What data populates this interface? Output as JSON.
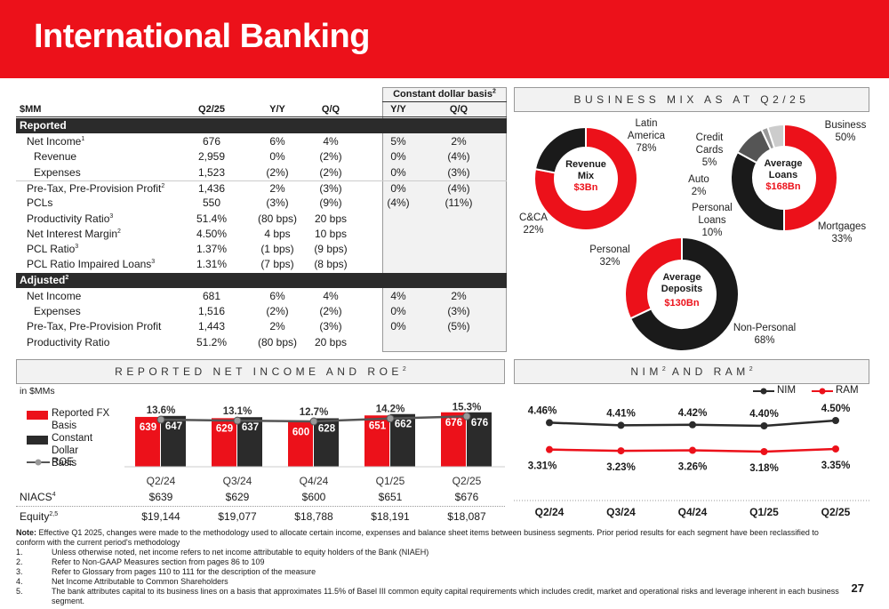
{
  "title": "International Banking",
  "table": {
    "cdb": "Constant dollar basis",
    "cdb_sup": "2",
    "headers": [
      "$MM",
      "Q2/25",
      "Y/Y",
      "Q/Q",
      "Y/Y",
      "Q/Q"
    ],
    "sections": [
      {
        "label": "Reported",
        "sup": ""
      },
      {
        "label": "Adjusted",
        "sup": "2"
      }
    ],
    "reported_rows": [
      {
        "label": "Net Income",
        "sup": "1",
        "indent": false,
        "vals": [
          "676",
          "6%",
          "4%",
          "5%",
          "2%"
        ]
      },
      {
        "label": "Revenue",
        "sup": "",
        "indent": true,
        "vals": [
          "2,959",
          "0%",
          "(2%)",
          "0%",
          "(4%)"
        ]
      },
      {
        "label": "Expenses",
        "sup": "",
        "indent": true,
        "vals": [
          "1,523",
          "(2%)",
          "(2%)",
          "0%",
          "(3%)"
        ]
      },
      {
        "label": "Pre-Tax, Pre-Provision Profit",
        "sup": "2",
        "indent": false,
        "vals": [
          "1,436",
          "2%",
          "(3%)",
          "0%",
          "(4%)"
        ]
      },
      {
        "label": "PCLs",
        "sup": "",
        "indent": false,
        "vals": [
          "550",
          "(3%)",
          "(9%)",
          "(4%)",
          "(11%)"
        ]
      },
      {
        "label": "Productivity Ratio",
        "sup": "3",
        "indent": false,
        "vals": [
          "51.4%",
          "(80 bps)",
          "20 bps",
          "",
          ""
        ]
      },
      {
        "label": "Net Interest Margin",
        "sup": "2",
        "indent": false,
        "vals": [
          "4.50%",
          "4 bps",
          "10 bps",
          "",
          ""
        ]
      },
      {
        "label": "PCL Ratio",
        "sup": "3",
        "indent": false,
        "vals": [
          "1.37%",
          "(1 bps)",
          "(9 bps)",
          "",
          ""
        ]
      },
      {
        "label": "PCL Ratio Impaired Loans",
        "sup": "3",
        "indent": false,
        "vals": [
          "1.31%",
          "(7 bps)",
          "(8 bps)",
          "",
          ""
        ]
      }
    ],
    "adjusted_rows": [
      {
        "label": "Net Income",
        "sup": "",
        "indent": false,
        "vals": [
          "681",
          "6%",
          "4%",
          "4%",
          "2%"
        ]
      },
      {
        "label": "Expenses",
        "sup": "",
        "indent": true,
        "vals": [
          "1,516",
          "(2%)",
          "(2%)",
          "0%",
          "(3%)"
        ]
      },
      {
        "label": "Pre-Tax, Pre-Provision Profit",
        "sup": "",
        "indent": false,
        "vals": [
          "1,443",
          "2%",
          "(3%)",
          "0%",
          "(5%)"
        ]
      },
      {
        "label": "Productivity Ratio",
        "sup": "",
        "indent": false,
        "vals": [
          "51.2%",
          "(80 bps)",
          "20 bps",
          "",
          ""
        ]
      }
    ]
  },
  "business_mix": {
    "title": "BUSINESS MIX AS AT Q2/25",
    "revenue": {
      "center": [
        "Revenue",
        "Mix"
      ],
      "value": "$3Bn",
      "labels": [
        {
          "name": "Latin America",
          "pct": "78%"
        },
        {
          "name": "C&CA",
          "pct": "22%"
        }
      ],
      "slices": [
        78,
        22
      ]
    },
    "loans": {
      "center": [
        "Average",
        "Loans"
      ],
      "value": "$168Bn",
      "labels": [
        {
          "name": "Business",
          "pct": "50%"
        },
        {
          "name": "Mortgages",
          "pct": "33%"
        },
        {
          "name": "Personal Loans",
          "pct": "10%"
        },
        {
          "name": "Auto",
          "pct": "2%"
        },
        {
          "name": "Credit Cards",
          "pct": "5%"
        }
      ],
      "slices": [
        50,
        33,
        10,
        2,
        5
      ]
    },
    "deposits": {
      "center": [
        "Average",
        "Deposits"
      ],
      "value": "$130Bn",
      "labels": [
        {
          "name": "Non-Personal",
          "pct": "68%"
        },
        {
          "name": "Personal",
          "pct": "32%"
        }
      ],
      "slices": [
        68,
        32
      ]
    }
  },
  "net_income_panel": {
    "title": "REPORTED NET INCOME AND ROE",
    "title_sup": "2",
    "unit": "in $MMs",
    "legend": [
      "Reported FX Basis",
      "Constant Dollar Basis",
      "ROE"
    ],
    "niacs_label": "NIACS",
    "niacs_sup": "4",
    "equity_label": "Equity",
    "equity_sup": "2,5",
    "niacs": [
      "$639",
      "$629",
      "$600",
      "$651",
      "$676"
    ],
    "equity": [
      "$19,144",
      "$19,077",
      "$18,788",
      "$18,191",
      "$18,087"
    ]
  },
  "nim_panel": {
    "title": "NIM AND RAM",
    "legend": [
      "NIM",
      "RAM"
    ]
  },
  "colors": {
    "red": "#ec111a",
    "dark": "#2b2b2b",
    "grey": "#888888"
  },
  "chart_data": [
    {
      "type": "bar",
      "categories": [
        "Q2/24",
        "Q3/24",
        "Q4/24",
        "Q1/25",
        "Q2/25"
      ],
      "series": [
        {
          "name": "Reported FX Basis",
          "values": [
            639,
            629,
            600,
            651,
            676
          ]
        },
        {
          "name": "Constant Dollar Basis",
          "values": [
            647,
            637,
            628,
            662,
            676
          ]
        },
        {
          "name": "ROE",
          "values": [
            13.6,
            13.1,
            12.7,
            14.2,
            15.3
          ],
          "labels": [
            "13.6%",
            "13.1%",
            "12.7%",
            "14.2%",
            "15.3%"
          ]
        }
      ]
    },
    {
      "type": "line",
      "categories": [
        "Q2/24",
        "Q3/24",
        "Q4/24",
        "Q1/25",
        "Q2/25"
      ],
      "series": [
        {
          "name": "NIM",
          "values": [
            4.46,
            4.41,
            4.42,
            4.4,
            4.5
          ],
          "labels": [
            "4.46%",
            "4.41%",
            "4.42%",
            "4.40%",
            "4.50%"
          ]
        },
        {
          "name": "RAM",
          "values": [
            3.31,
            3.23,
            3.26,
            3.18,
            3.35
          ],
          "labels": [
            "3.31%",
            "3.23%",
            "3.26%",
            "3.18%",
            "3.35%"
          ]
        }
      ]
    }
  ],
  "notes": {
    "note_label": "Note:",
    "note_text": " Effective Q1 2025, changes were made to the methodology used to allocate certain income, expenses and balance sheet items between business segments. Prior period results for each segment have been reclassified to conform with the current period's methodology",
    "items": [
      {
        "n": "1.",
        "text": "Unless otherwise noted, net income refers to net income attributable to equity holders of the Bank (NIAEH)"
      },
      {
        "n": "2.",
        "text": "Refer to Non-GAAP Measures section from pages 86 to 109"
      },
      {
        "n": "3.",
        "text": "Refer to Glossary from pages 110 to 111 for the description of the measure"
      },
      {
        "n": "4.",
        "text": "Net Income Attributable to Common Shareholders"
      },
      {
        "n": "5.",
        "text": "The bank attributes capital to its business lines on a basis that approximates 11.5% of Basel III common equity capital requirements which includes credit, market and operational risks and leverage inherent in each business segment."
      }
    ]
  },
  "page_number": "27"
}
